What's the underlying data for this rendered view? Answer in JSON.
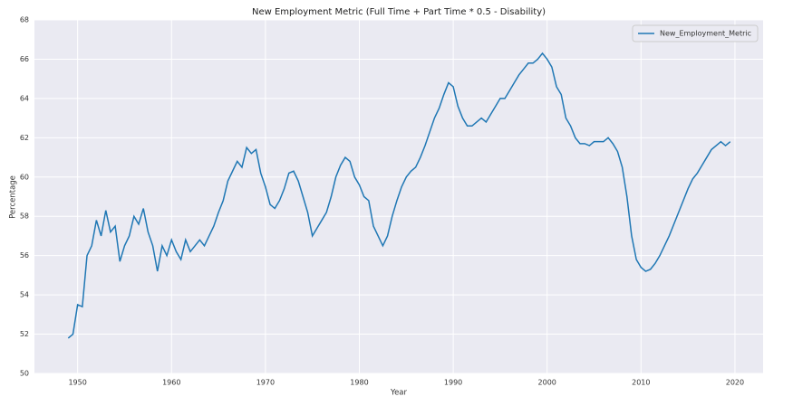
{
  "chart_data": {
    "type": "line",
    "title": "New Employment Metric (Full Time + Part Time * 0.5 - Disability)",
    "x_label": "Year",
    "y_label": "Percentage",
    "xlim": [
      1945.4,
      2023
    ],
    "ylim": [
      50,
      68
    ],
    "xticks": [
      1950,
      1960,
      1970,
      1980,
      1990,
      2000,
      2010,
      2020
    ],
    "yticks": [
      50,
      52,
      54,
      56,
      58,
      60,
      62,
      64,
      66,
      68
    ],
    "grid": true,
    "legend": "upper right",
    "x": [
      1949.0,
      1949.5,
      1950.0,
      1950.5,
      1951.0,
      1951.5,
      1952.0,
      1952.5,
      1953.0,
      1953.5,
      1954.0,
      1954.5,
      1955.0,
      1955.5,
      1956.0,
      1956.5,
      1957.0,
      1957.5,
      1958.0,
      1958.5,
      1959.0,
      1959.5,
      1960.0,
      1960.5,
      1961.0,
      1961.5,
      1962.0,
      1962.5,
      1963.0,
      1963.5,
      1964.0,
      1964.5,
      1965.0,
      1965.5,
      1966.0,
      1966.5,
      1967.0,
      1967.5,
      1968.0,
      1968.5,
      1969.0,
      1969.5,
      1970.0,
      1970.5,
      1971.0,
      1971.5,
      1972.0,
      1972.5,
      1973.0,
      1973.5,
      1974.0,
      1974.5,
      1975.0,
      1975.5,
      1976.0,
      1976.5,
      1977.0,
      1977.5,
      1978.0,
      1978.5,
      1979.0,
      1979.5,
      1980.0,
      1980.5,
      1981.0,
      1981.5,
      1982.0,
      1982.5,
      1983.0,
      1983.5,
      1984.0,
      1984.5,
      1985.0,
      1985.5,
      1986.0,
      1986.5,
      1987.0,
      1987.5,
      1988.0,
      1988.5,
      1989.0,
      1989.5,
      1990.0,
      1990.5,
      1991.0,
      1991.5,
      1992.0,
      1992.5,
      1993.0,
      1993.5,
      1994.0,
      1994.5,
      1995.0,
      1995.5,
      1996.0,
      1996.5,
      1997.0,
      1997.5,
      1998.0,
      1998.5,
      1999.0,
      1999.5,
      2000.0,
      2000.5,
      2001.0,
      2001.5,
      2002.0,
      2002.5,
      2003.0,
      2003.5,
      2004.0,
      2004.5,
      2005.0,
      2005.5,
      2006.0,
      2006.5,
      2007.0,
      2007.5,
      2008.0,
      2008.5,
      2009.0,
      2009.5,
      2010.0,
      2010.5,
      2011.0,
      2011.5,
      2012.0,
      2012.5,
      2013.0,
      2013.5,
      2014.0,
      2014.5,
      2015.0,
      2015.5,
      2016.0,
      2016.5,
      2017.0,
      2017.5,
      2018.0,
      2018.5,
      2019.0,
      2019.5
    ],
    "series": [
      {
        "name": "New_Employment_Metric",
        "color": "#1f77b4",
        "values": [
          51.8,
          52.0,
          53.5,
          53.4,
          56.0,
          56.5,
          57.8,
          57.0,
          58.3,
          57.2,
          57.5,
          55.7,
          56.5,
          57.0,
          58.0,
          57.6,
          58.4,
          57.2,
          56.5,
          55.2,
          56.5,
          56.0,
          56.8,
          56.2,
          55.8,
          56.8,
          56.2,
          56.5,
          56.8,
          56.5,
          57.0,
          57.5,
          58.2,
          58.8,
          59.8,
          60.3,
          60.8,
          60.5,
          61.5,
          61.2,
          61.4,
          60.2,
          59.5,
          58.6,
          58.4,
          58.8,
          59.4,
          60.2,
          60.3,
          59.8,
          59.0,
          58.2,
          57.0,
          57.4,
          57.8,
          58.2,
          59.0,
          60.0,
          60.6,
          61.0,
          60.8,
          60.0,
          59.6,
          59.0,
          58.8,
          57.5,
          57.0,
          56.5,
          57.0,
          58.0,
          58.8,
          59.5,
          60.0,
          60.3,
          60.5,
          61.0,
          61.6,
          62.3,
          63.0,
          63.5,
          64.2,
          64.8,
          64.6,
          63.6,
          63.0,
          62.6,
          62.6,
          62.8,
          63.0,
          62.8,
          63.2,
          63.6,
          64.0,
          64.0,
          64.4,
          64.8,
          65.2,
          65.5,
          65.8,
          65.8,
          66.0,
          66.3,
          66.0,
          65.6,
          64.6,
          64.2,
          63.0,
          62.6,
          62.0,
          61.7,
          61.7,
          61.6,
          61.8,
          61.8,
          61.8,
          62.0,
          61.7,
          61.3,
          60.5,
          59.0,
          57.0,
          55.8,
          55.4,
          55.2,
          55.3,
          55.6,
          56.0,
          56.5,
          57.0,
          57.6,
          58.2,
          58.8,
          59.4,
          59.9,
          60.2,
          60.6,
          61.0,
          61.4,
          61.6,
          61.8,
          61.6,
          61.8
        ]
      }
    ]
  }
}
